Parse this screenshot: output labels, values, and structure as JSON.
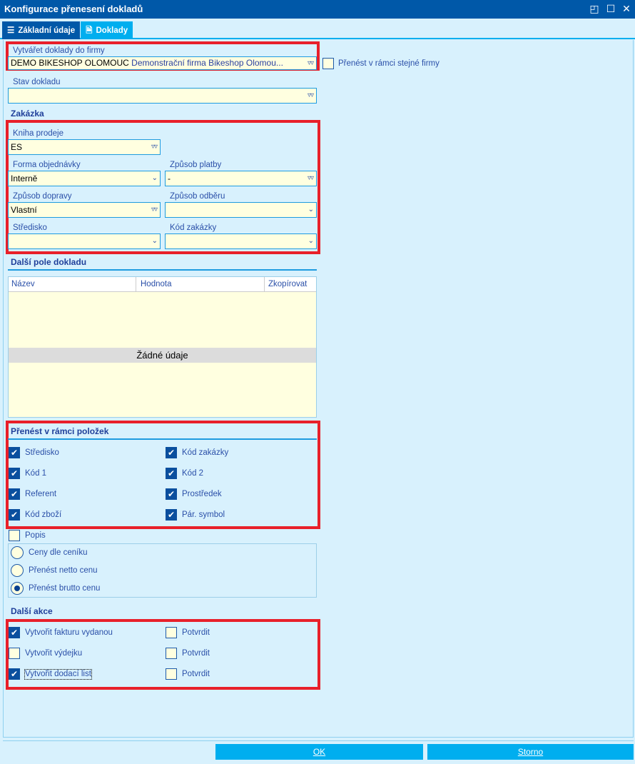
{
  "window": {
    "title": "Konfigurace přenesení dokladů",
    "btn_restore": "◰",
    "btn_max": "☐",
    "btn_close": "✕"
  },
  "tabs": [
    {
      "label": "Základní údaje",
      "icon": "list-icon",
      "active": false
    },
    {
      "label": "Doklady",
      "icon": "document-icon",
      "active": true
    }
  ],
  "company": {
    "label": "Vytvářet doklady do firmy",
    "code": "DEMO BIKESHOP OLOMOUC",
    "name": "Demonstrační firma Bikeshop Olomou...",
    "same_company_label": "Přenést v rámci stejné firmy",
    "same_company_checked": false
  },
  "status": {
    "label": "Stav dokladu",
    "value": ""
  },
  "order": {
    "heading": "Zakázka",
    "kniha": {
      "label": "Kniha prodeje",
      "value": "ES"
    },
    "forma": {
      "label": "Forma objednávky",
      "value": "Interně"
    },
    "platba": {
      "label": "Způsob platby",
      "value": "-"
    },
    "doprava": {
      "label": "Způsob dopravy",
      "value": "Vlastní"
    },
    "odber": {
      "label": "Způsob odběru",
      "value": ""
    },
    "stredisko": {
      "label": "Středisko",
      "value": ""
    },
    "kod": {
      "label": "Kód zakázky",
      "value": ""
    }
  },
  "extra_fields": {
    "heading": "Další pole dokladu",
    "columns": [
      "Název",
      "Hodnota",
      "Zkopírovat"
    ],
    "empty": "Žádné údaje"
  },
  "items": {
    "heading": "Přenést v rámci položek",
    "checks": [
      {
        "label": "Středisko",
        "checked": true
      },
      {
        "label": "Kód zakázky",
        "checked": true
      },
      {
        "label": "Kód 1",
        "checked": true
      },
      {
        "label": "Kód 2",
        "checked": true
      },
      {
        "label": "Referent",
        "checked": true
      },
      {
        "label": "Prostředek",
        "checked": true
      },
      {
        "label": "Kód zboží",
        "checked": true
      },
      {
        "label": "Pár. symbol",
        "checked": true
      }
    ]
  },
  "popis": {
    "label": "Popis",
    "checked": false
  },
  "price": {
    "options": [
      {
        "label": "Ceny dle ceníku",
        "selected": false
      },
      {
        "label": "Přenést netto cenu",
        "selected": false
      },
      {
        "label": "Přenést brutto cenu",
        "selected": true
      }
    ]
  },
  "actions": {
    "heading": "Další akce",
    "rows": [
      {
        "label": "Vytvořit fakturu vydanou",
        "checked": true,
        "confirm": "Potvrdit",
        "confirm_checked": false
      },
      {
        "label": "Vytvořit výdejku",
        "checked": false,
        "confirm": "Potvrdit",
        "confirm_checked": false
      },
      {
        "label": "Vytvořit dodací list",
        "checked": true,
        "confirm": "Potvrdit",
        "confirm_checked": false
      }
    ]
  },
  "buttons": {
    "ok": "OK",
    "cancel": "Storno"
  },
  "colors": {
    "titlebar": "#0058a8",
    "tab_active": "#00aeef",
    "highlight": "#e8202a",
    "input_bg": "#ffffe0"
  }
}
